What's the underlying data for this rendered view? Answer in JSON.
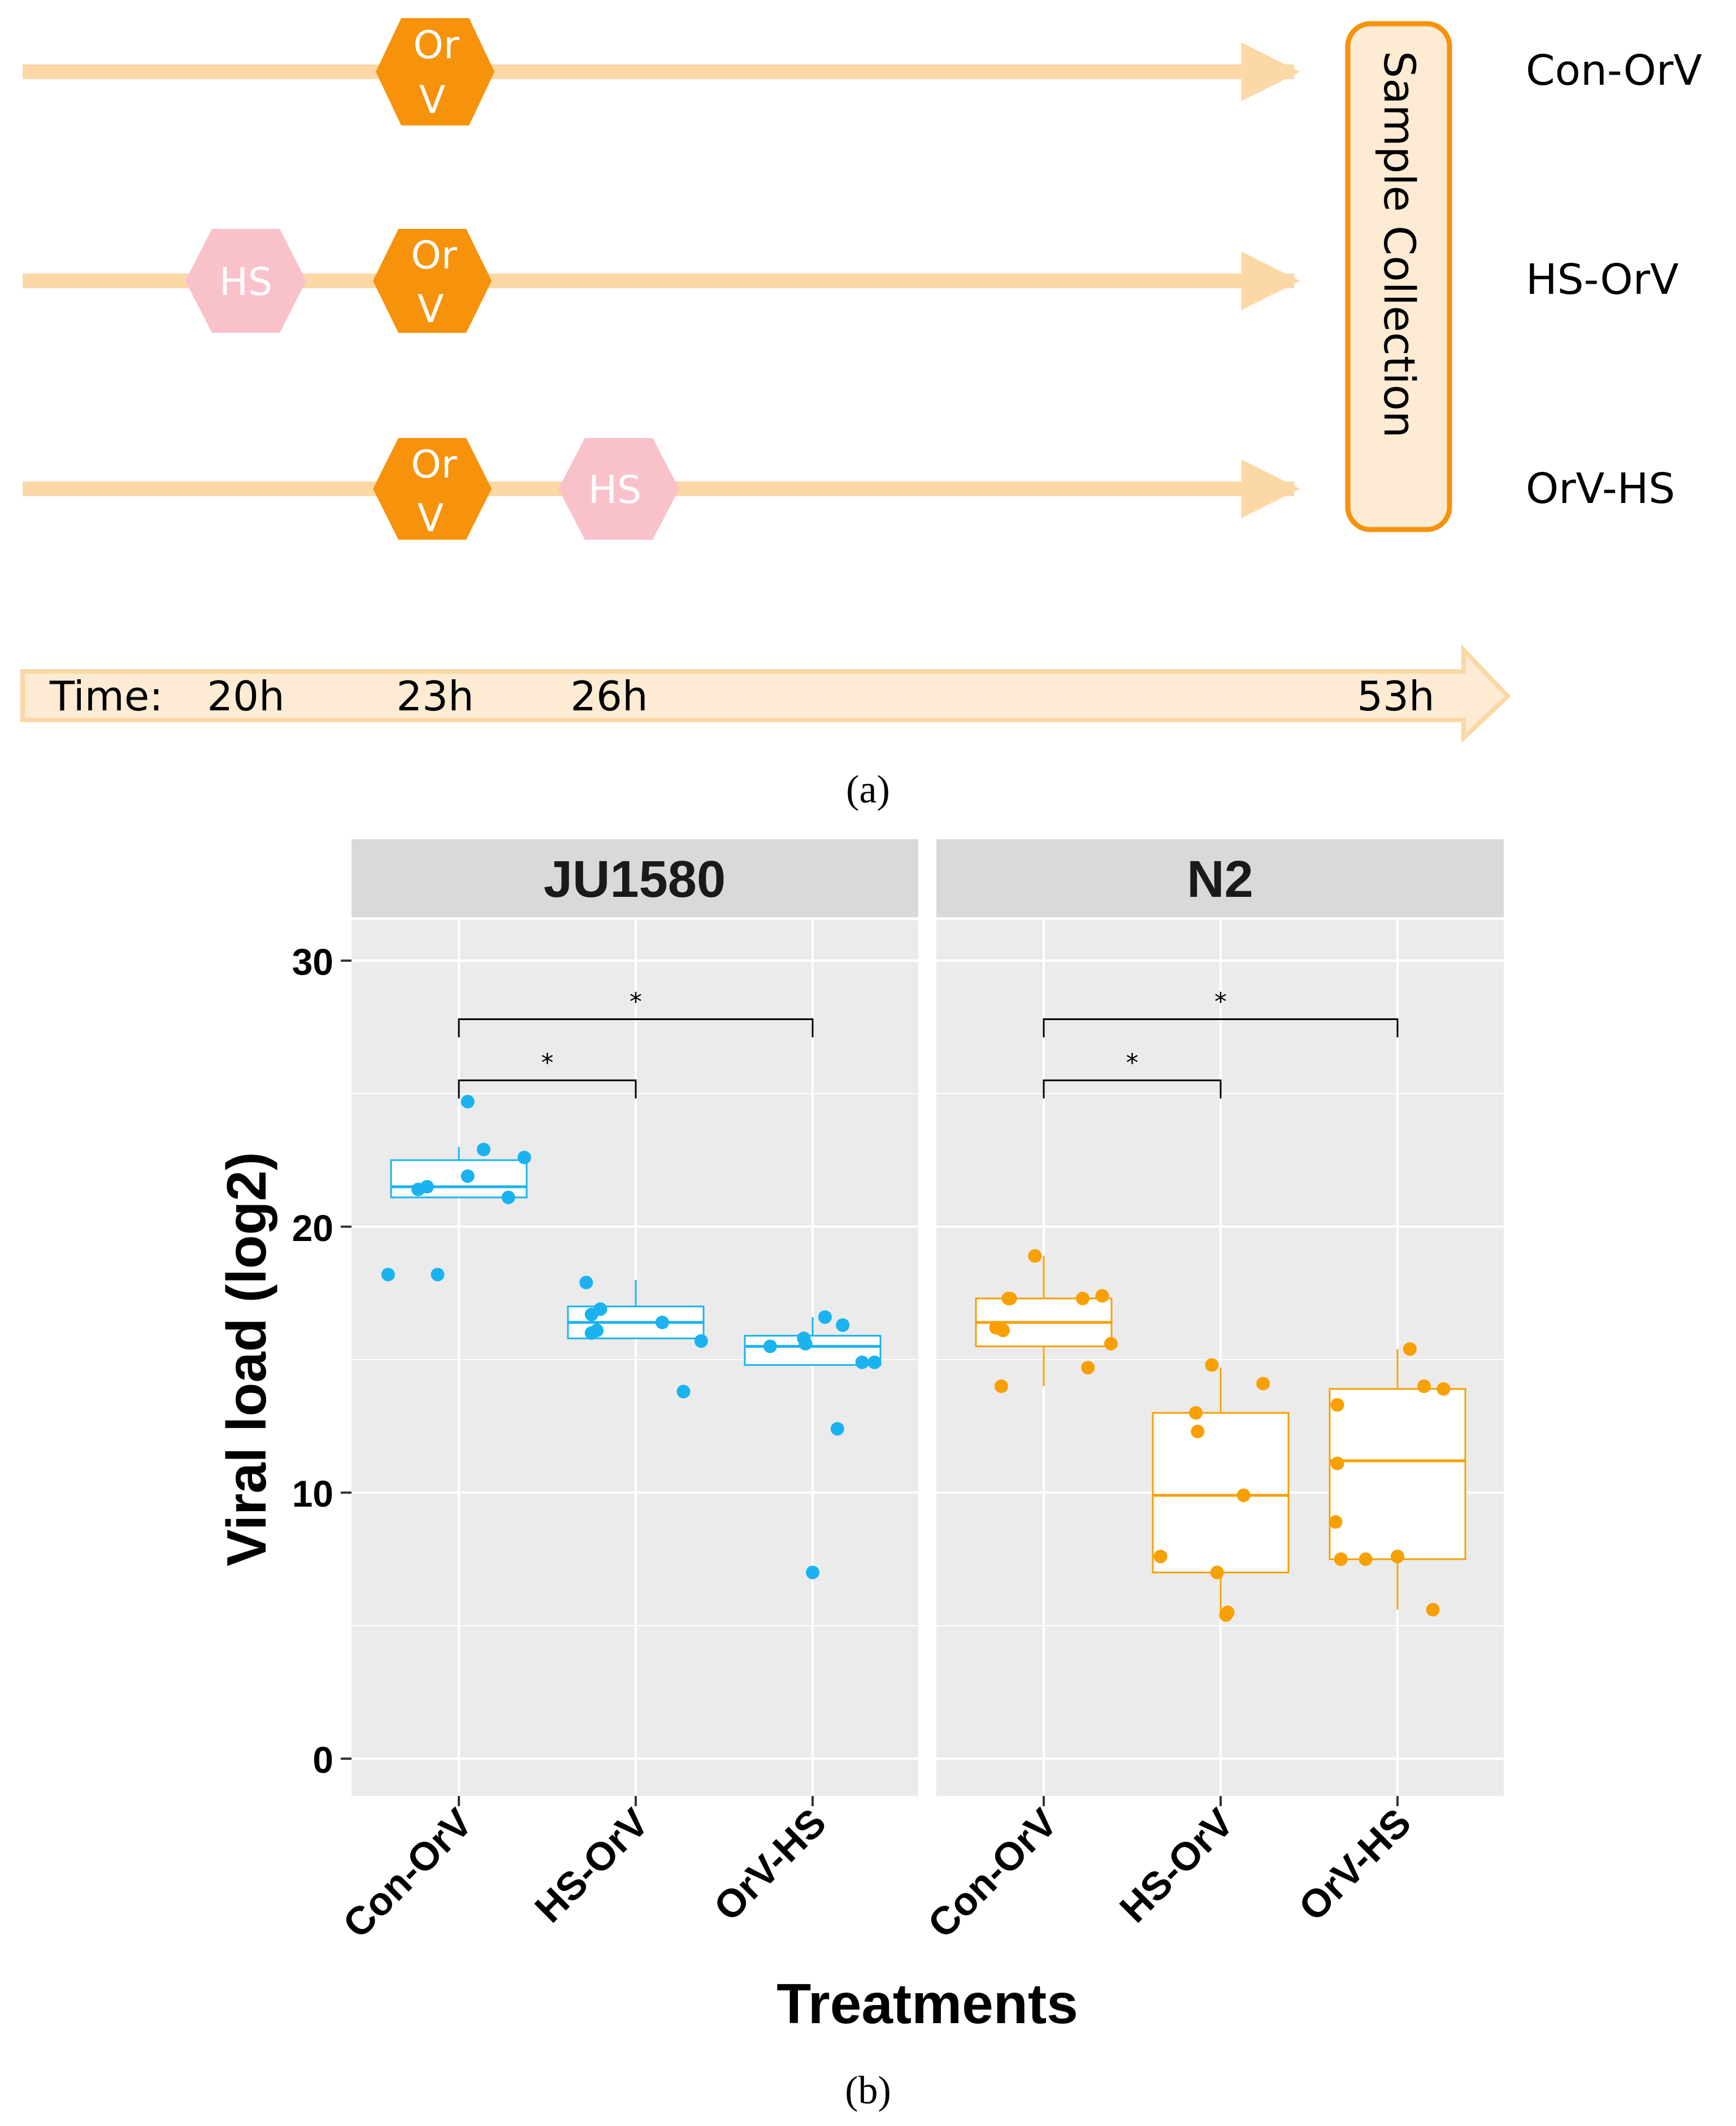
{
  "panel_a": {
    "label": "(a)",
    "rows": [
      {
        "name": "Con-OrV",
        "events": [
          "OrV"
        ]
      },
      {
        "name": "HS-OrV",
        "events": [
          "HS",
          "OrV"
        ]
      },
      {
        "name": "OrV-HS",
        "events": [
          "OrV",
          "HS"
        ]
      }
    ],
    "orv_line1": "Or",
    "orv_line2": "V",
    "hs_label": "HS",
    "sample_collection": "Sample Collection",
    "time_label": "Time:",
    "time_points": [
      "20h",
      "23h",
      "26h",
      "53h"
    ],
    "colors": {
      "orv": "#f7920b",
      "hs": "#f9c2cb",
      "arrow": "#fbd8a6",
      "box_fill": "#fdebd3",
      "box_stroke": "#f7920b"
    }
  },
  "panel_b": {
    "label": "(b)",
    "chart_data": {
      "type": "boxplot",
      "facets": [
        "JU1580",
        "N2"
      ],
      "categories": [
        "Con-OrV",
        "HS-OrV",
        "OrV-HS"
      ],
      "xlabel": "Treatments",
      "ylabel": "Viral load (log2)",
      "ylim": [
        -1.5,
        32.5
      ],
      "yticks": [
        0,
        10,
        20,
        30
      ],
      "significance_marker": "*",
      "significance": [
        {
          "facet": "JU1580",
          "from": "Con-OrV",
          "to": "HS-OrV",
          "y": 25.5
        },
        {
          "facet": "JU1580",
          "from": "Con-OrV",
          "to": "OrV-HS",
          "y": 27.8
        },
        {
          "facet": "N2",
          "from": "Con-OrV",
          "to": "HS-OrV",
          "y": 25.5
        },
        {
          "facet": "N2",
          "from": "Con-OrV",
          "to": "OrV-HS",
          "y": 27.8
        }
      ],
      "series": [
        {
          "facet": "JU1580",
          "color": "#1ab3f0",
          "groups": [
            {
              "category": "Con-OrV",
              "q1": 21.1,
              "median": 21.5,
              "q3": 22.5,
              "whisker_low": 21.1,
              "whisker_high": 23.0,
              "points": [
                [
                  -0.4,
                  18.2
                ],
                [
                  -0.23,
                  21.4
                ],
                [
                  -0.18,
                  21.5
                ],
                [
                  -0.12,
                  18.2
                ],
                [
                  0.05,
                  21.9
                ],
                [
                  0.05,
                  24.7
                ],
                [
                  0.14,
                  22.9
                ],
                [
                  0.28,
                  21.1
                ],
                [
                  0.37,
                  22.6
                ]
              ]
            },
            {
              "category": "HS-OrV",
              "q1": 15.8,
              "median": 16.4,
              "q3": 17.0,
              "whisker_low": 15.8,
              "whisker_high": 18.0,
              "points": [
                [
                  -0.28,
                  17.9
                ],
                [
                  -0.25,
                  16.7
                ],
                [
                  -0.25,
                  16.0
                ],
                [
                  -0.22,
                  16.1
                ],
                [
                  -0.2,
                  16.9
                ],
                [
                  0.15,
                  16.4
                ],
                [
                  0.27,
                  13.8
                ],
                [
                  0.37,
                  15.7
                ]
              ]
            },
            {
              "category": "OrV-HS",
              "q1": 14.8,
              "median": 15.5,
              "q3": 15.9,
              "whisker_low": 14.8,
              "whisker_high": 16.6,
              "points": [
                [
                  -0.24,
                  15.5
                ],
                [
                  -0.05,
                  15.8
                ],
                [
                  -0.04,
                  15.6
                ],
                [
                  0.0,
                  7.0
                ],
                [
                  0.07,
                  16.6
                ],
                [
                  0.14,
                  12.4
                ],
                [
                  0.17,
                  16.3
                ],
                [
                  0.28,
                  14.9
                ],
                [
                  0.35,
                  14.9
                ]
              ]
            }
          ]
        },
        {
          "facet": "N2",
          "color": "#f8a000",
          "groups": [
            {
              "category": "Con-OrV",
              "q1": 15.5,
              "median": 16.4,
              "q3": 17.3,
              "whisker_low": 14.0,
              "whisker_high": 18.9,
              "points": [
                [
                  -0.27,
                  16.2
                ],
                [
                  -0.24,
                  14.0
                ],
                [
                  -0.23,
                  16.1
                ],
                [
                  -0.2,
                  17.3
                ],
                [
                  -0.19,
                  17.3
                ],
                [
                  -0.05,
                  18.9
                ],
                [
                  0.22,
                  17.3
                ],
                [
                  0.25,
                  14.7
                ],
                [
                  0.33,
                  17.4
                ],
                [
                  0.38,
                  15.6
                ]
              ]
            },
            {
              "category": "HS-OrV",
              "q1": 7.0,
              "median": 9.9,
              "q3": 13.0,
              "whisker_low": 5.3,
              "whisker_high": 14.7,
              "points": [
                [
                  -0.34,
                  7.6
                ],
                [
                  -0.14,
                  13.0
                ],
                [
                  -0.13,
                  12.3
                ],
                [
                  -0.05,
                  14.8
                ],
                [
                  -0.02,
                  7.0
                ],
                [
                  0.03,
                  5.4
                ],
                [
                  0.04,
                  5.5
                ],
                [
                  0.13,
                  9.9
                ],
                [
                  0.24,
                  14.1
                ]
              ]
            },
            {
              "category": "OrV-HS",
              "q1": 7.5,
              "median": 11.2,
              "q3": 13.9,
              "whisker_low": 5.6,
              "whisker_high": 15.4,
              "points": [
                [
                  -0.34,
                  13.3
                ],
                [
                  -0.35,
                  8.9
                ],
                [
                  -0.34,
                  11.1
                ],
                [
                  -0.32,
                  7.5
                ],
                [
                  -0.18,
                  7.5
                ],
                [
                  0.0,
                  7.6
                ],
                [
                  0.07,
                  15.4
                ],
                [
                  0.15,
                  14.0
                ],
                [
                  0.2,
                  5.6
                ],
                [
                  0.26,
                  13.9
                ]
              ]
            }
          ]
        }
      ]
    }
  }
}
